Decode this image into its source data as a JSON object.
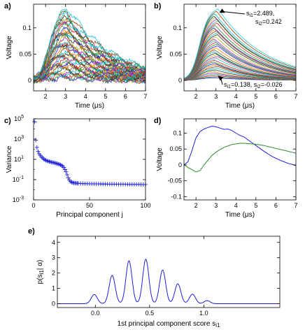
{
  "chart_data": [
    {
      "panel": "a)",
      "type": "line",
      "xlabel": "Time (μs)",
      "ylabel": "Voltage",
      "xlim": [
        1.4,
        7.0
      ],
      "ylim": [
        -0.02,
        0.145
      ],
      "xticks": [
        2,
        3,
        4,
        5,
        6,
        7
      ],
      "yticks": [
        0,
        0.05,
        0.1
      ],
      "ytick_labels": [
        "0",
        "0.05",
        "0.1"
      ],
      "n_traces": 40,
      "peak_time": 3.0,
      "peak_range": [
        0.005,
        0.138
      ],
      "noisy": true
    },
    {
      "panel": "b)",
      "type": "line",
      "xlabel": "Time (μs)",
      "ylabel": "Voltage",
      "xlim": [
        1.4,
        7.0
      ],
      "ylim": [
        -0.02,
        0.145
      ],
      "xticks": [
        2,
        3,
        4,
        5,
        6,
        7
      ],
      "yticks": [
        0,
        0.05,
        0.1
      ],
      "ytick_labels": [
        "0",
        "0.05",
        "0.1"
      ],
      "n_traces": 40,
      "peak_time": 3.0,
      "peak_range": [
        0.005,
        0.138
      ],
      "noisy": false,
      "annotations": [
        {
          "line1": "s",
          "sub1": "i1",
          "val1": "=2.489,",
          "line2": "s",
          "sub2": "i2",
          "val2": "=0.242",
          "target": [
            3.1,
            0.126
          ]
        },
        {
          "s1": "s",
          "sub1": "i1",
          "val1": "=0.138, ",
          "s2": "s",
          "sub2": "i2",
          "val2": "=-0.026",
          "target": [
            3.1,
            0.01
          ]
        }
      ]
    },
    {
      "panel": "c)",
      "type": "scatter",
      "marker": "+",
      "xlabel": "Principal component j",
      "ylabel": "Variance",
      "yscale": "log",
      "xlim": [
        0,
        100
      ],
      "ylim_exp": [
        -3,
        5
      ],
      "xticks": [
        0,
        50,
        100
      ],
      "yticks_exp": [
        -3,
        -1,
        1,
        3,
        5
      ],
      "values": [
        {
          "j": 1,
          "v": 50000
        },
        {
          "j": 2,
          "v": 800
        },
        {
          "j": 3,
          "v": 150
        },
        {
          "j": 4,
          "v": 60
        },
        {
          "j": 5,
          "v": 35
        },
        {
          "j": 6,
          "v": 25
        },
        {
          "j": 7,
          "v": 18
        },
        {
          "j": 8,
          "v": 14
        },
        {
          "j": 9,
          "v": 11
        },
        {
          "j": 10,
          "v": 9
        },
        {
          "j": 11,
          "v": 8
        },
        {
          "j": 12,
          "v": 7.2
        },
        {
          "j": 13,
          "v": 6.6
        },
        {
          "j": 14,
          "v": 6.1
        },
        {
          "j": 15,
          "v": 5.7
        },
        {
          "j": 16,
          "v": 5.3
        },
        {
          "j": 17,
          "v": 5.0
        },
        {
          "j": 18,
          "v": 4.7
        },
        {
          "j": 19,
          "v": 4.4
        },
        {
          "j": 20,
          "v": 4.1
        },
        {
          "j": 21,
          "v": 3.8
        },
        {
          "j": 22,
          "v": 3.5
        },
        {
          "j": 23,
          "v": 3.2
        },
        {
          "j": 24,
          "v": 2.9
        },
        {
          "j": 25,
          "v": 2.5
        },
        {
          "j": 26,
          "v": 2.1
        },
        {
          "j": 27,
          "v": 1.6
        },
        {
          "j": 28,
          "v": 1.0
        },
        {
          "j": 29,
          "v": 0.6
        },
        {
          "j": 30,
          "v": 0.3
        },
        {
          "j": 31,
          "v": 0.15
        },
        {
          "j": 32,
          "v": 0.09
        },
        {
          "j": 33,
          "v": 0.065
        },
        {
          "j": 34,
          "v": 0.055
        },
        {
          "j": 35,
          "v": 0.05
        },
        {
          "j": 36,
          "v": 0.048
        },
        {
          "j": 37,
          "v": 0.046
        },
        {
          "j": 38,
          "v": 0.045
        },
        {
          "j": 39,
          "v": 0.044
        },
        {
          "j": 40,
          "v": 0.043
        },
        {
          "j": 42,
          "v": 0.042
        },
        {
          "j": 44,
          "v": 0.041
        },
        {
          "j": 46,
          "v": 0.04
        },
        {
          "j": 48,
          "v": 0.04
        },
        {
          "j": 50,
          "v": 0.039
        },
        {
          "j": 52,
          "v": 0.039
        },
        {
          "j": 54,
          "v": 0.038
        },
        {
          "j": 56,
          "v": 0.038
        },
        {
          "j": 58,
          "v": 0.038
        },
        {
          "j": 60,
          "v": 0.037
        },
        {
          "j": 62,
          "v": 0.037
        },
        {
          "j": 64,
          "v": 0.037
        },
        {
          "j": 66,
          "v": 0.036
        },
        {
          "j": 68,
          "v": 0.036
        },
        {
          "j": 70,
          "v": 0.036
        },
        {
          "j": 72,
          "v": 0.036
        },
        {
          "j": 74,
          "v": 0.035
        },
        {
          "j": 76,
          "v": 0.035
        },
        {
          "j": 78,
          "v": 0.035
        },
        {
          "j": 80,
          "v": 0.035
        },
        {
          "j": 82,
          "v": 0.035
        },
        {
          "j": 84,
          "v": 0.034
        },
        {
          "j": 86,
          "v": 0.034
        },
        {
          "j": 88,
          "v": 0.034
        },
        {
          "j": 90,
          "v": 0.034
        },
        {
          "j": 92,
          "v": 0.034
        },
        {
          "j": 94,
          "v": 0.034
        },
        {
          "j": 96,
          "v": 0.033
        },
        {
          "j": 98,
          "v": 0.033
        },
        {
          "j": 100,
          "v": 0.033
        }
      ]
    },
    {
      "panel": "d)",
      "type": "line",
      "xlabel": "Time (μs)",
      "ylabel": "Voltage",
      "xlim": [
        1.4,
        7.0
      ],
      "ylim": [
        -0.11,
        0.145
      ],
      "xticks": [
        2,
        3,
        4,
        5,
        6,
        7
      ],
      "yticks": [
        -0.1,
        -0.05,
        0,
        0.05,
        0.1
      ],
      "ytick_labels": [
        "-0.1",
        "-0.05",
        "0",
        "0.05",
        "0.1"
      ],
      "series": [
        {
          "color": "#1f1fd6",
          "x": [
            1.4,
            1.6,
            1.8,
            2.0,
            2.2,
            2.4,
            2.6,
            2.8,
            3.0,
            3.2,
            3.4,
            3.6,
            3.8,
            4.0,
            4.2,
            4.4,
            4.6,
            4.8,
            5.0,
            5.2,
            5.4,
            5.6,
            5.8,
            6.0,
            6.2,
            6.4,
            6.6,
            6.8,
            7.0
          ],
          "y": [
            0.0,
            0.01,
            0.045,
            0.085,
            0.105,
            0.113,
            0.118,
            0.122,
            0.12,
            0.116,
            0.112,
            0.113,
            0.108,
            0.1,
            0.093,
            0.088,
            0.079,
            0.07,
            0.061,
            0.052,
            0.043,
            0.035,
            0.027,
            0.021,
            0.015,
            0.01,
            0.005,
            0.002,
            -0.002
          ]
        },
        {
          "color": "#2a8a2a",
          "x": [
            1.4,
            1.6,
            1.8,
            2.0,
            2.2,
            2.4,
            2.6,
            2.8,
            3.0,
            3.2,
            3.4,
            3.6,
            3.8,
            4.0,
            4.2,
            4.4,
            4.6,
            4.8,
            5.0,
            5.2,
            5.4,
            5.6,
            5.8,
            6.0,
            6.2,
            6.4,
            6.6,
            6.8,
            7.0
          ],
          "y": [
            0.0,
            -0.008,
            -0.015,
            -0.022,
            -0.018,
            0.0,
            0.015,
            0.03,
            0.04,
            0.048,
            0.055,
            0.06,
            0.064,
            0.066,
            0.068,
            0.068,
            0.067,
            0.066,
            0.065,
            0.063,
            0.061,
            0.058,
            0.055,
            0.052,
            0.049,
            0.046,
            0.043,
            0.04,
            0.037
          ]
        }
      ]
    },
    {
      "panel": "e)",
      "type": "line",
      "xlabel": "1st principal component score s",
      "xlabel_sub": "i1",
      "ylabel": "p(s",
      "ylabel_sub": "i1",
      "ylabel_end": "| α)",
      "xlim": [
        -0.35,
        1.7
      ],
      "ylim": [
        -0.25,
        4.4
      ],
      "xticks": [
        0,
        0.5,
        1
      ],
      "xtick_labels": [
        "0.0",
        "0.5",
        "1.0"
      ],
      "yticks": [
        0,
        1,
        2,
        3,
        4
      ],
      "color": "#1f1fd6",
      "peaks": [
        {
          "mu": -0.01,
          "h": 0.6,
          "sd": 0.028
        },
        {
          "mu": 0.155,
          "h": 1.85,
          "sd": 0.028
        },
        {
          "mu": 0.31,
          "h": 2.8,
          "sd": 0.028
        },
        {
          "mu": 0.465,
          "h": 2.9,
          "sd": 0.028
        },
        {
          "mu": 0.62,
          "h": 2.2,
          "sd": 0.028
        },
        {
          "mu": 0.76,
          "h": 1.3,
          "sd": 0.028
        },
        {
          "mu": 0.895,
          "h": 0.62,
          "sd": 0.028
        },
        {
          "mu": 1.03,
          "h": 0.2,
          "sd": 0.028
        }
      ]
    }
  ]
}
